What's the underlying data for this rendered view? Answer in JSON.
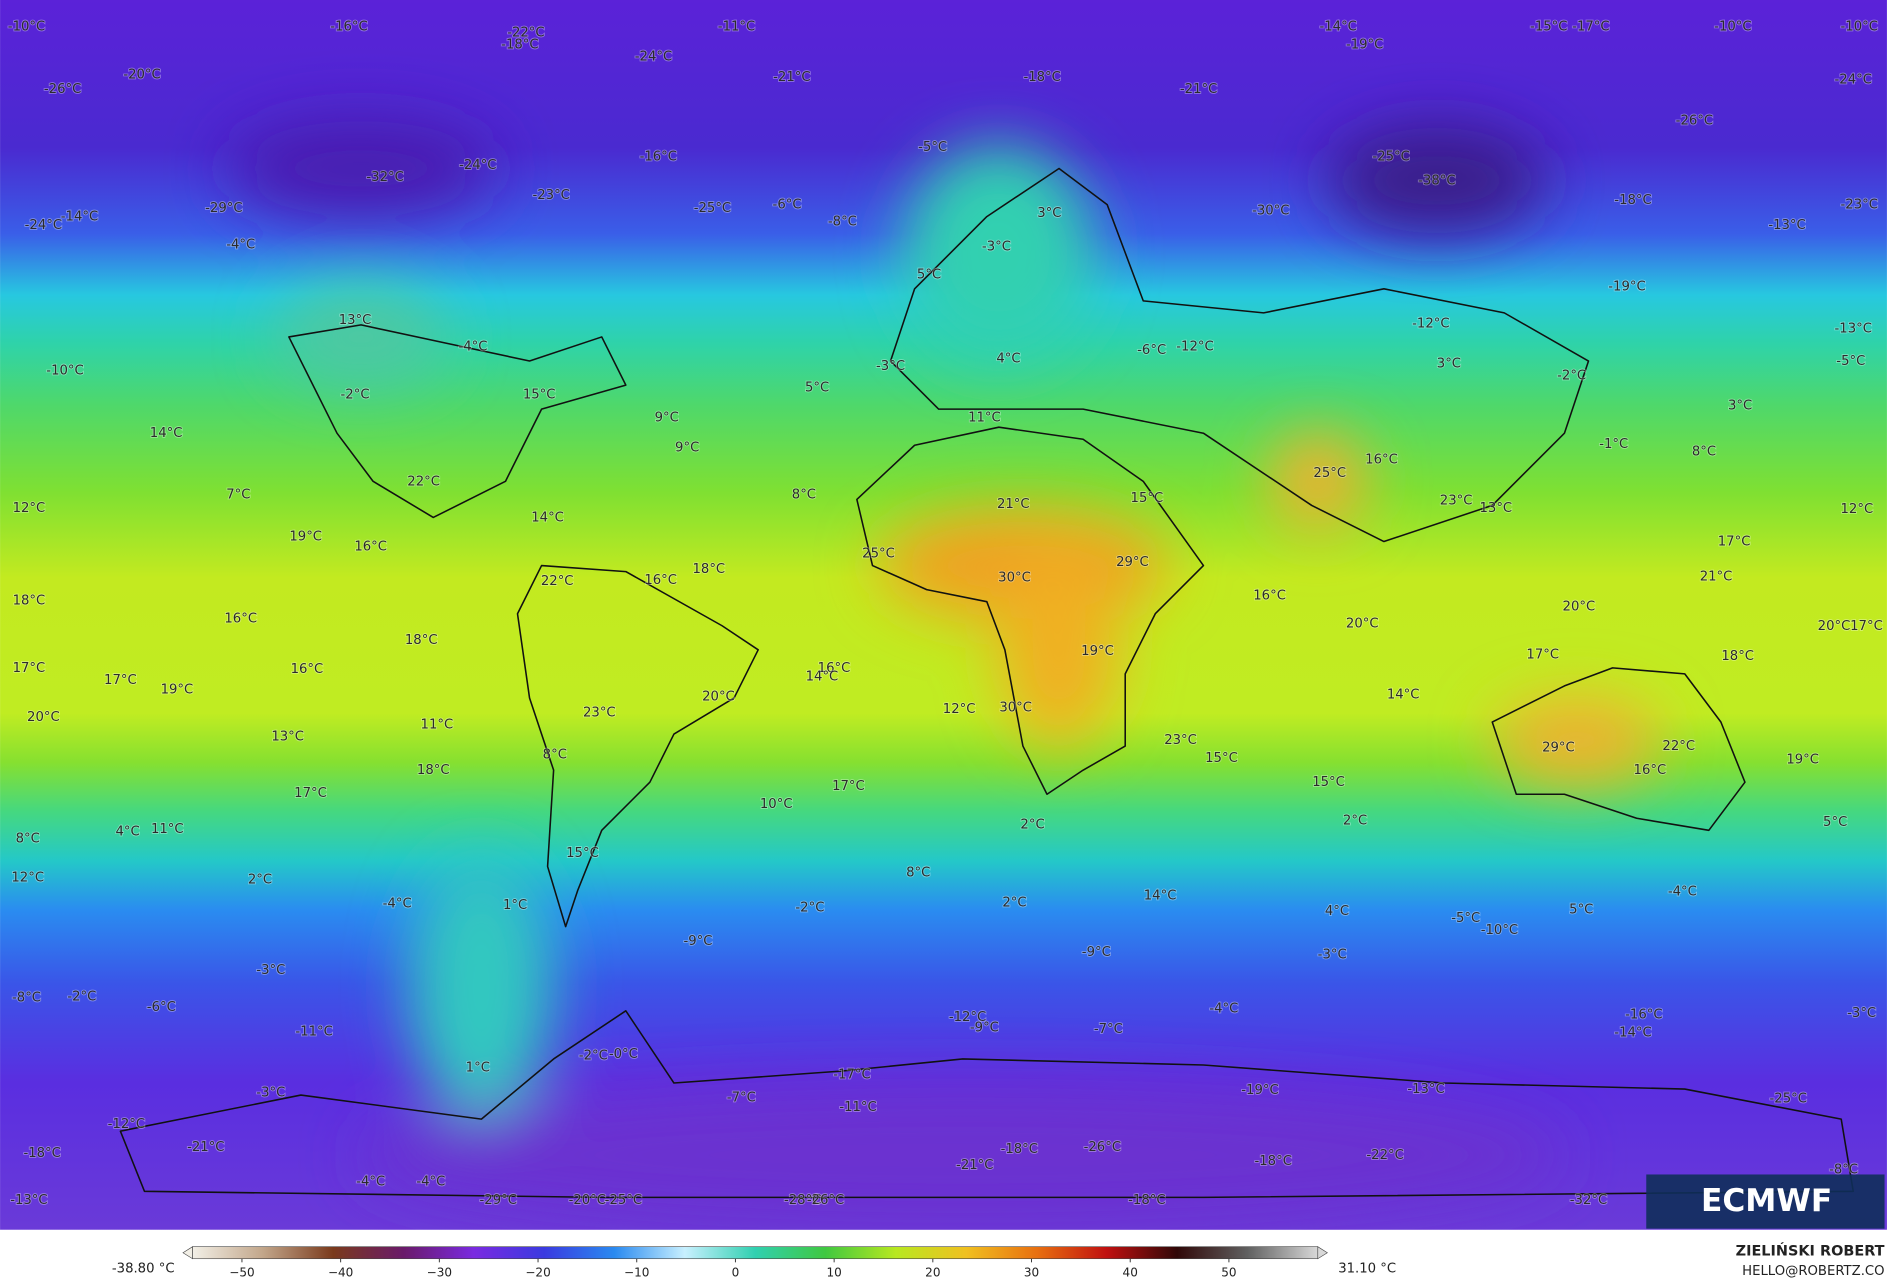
{
  "map": {
    "labels": [
      "-10°C",
      "-16°C",
      "-22°C",
      "-18°C",
      "-11°C",
      "-14°C",
      "-19°C",
      "-15°C",
      "-17°C",
      "-10°C",
      "-10°C",
      "-26°C",
      "-20°C",
      "-24°C",
      "-21°C",
      "-18°C",
      "-21°C",
      "-24°C",
      "-26°C",
      "-5°C",
      "-16°C",
      "-24°C",
      "-32°C",
      "-25°C",
      "-38°C",
      "-23°C",
      "-18°C",
      "-23°C",
      "-24°C",
      "-14°C",
      "-29°C",
      "-25°C",
      "-6°C",
      "-8°C",
      "3°C",
      "-30°C",
      "-13°C",
      "-4°C",
      "-3°C",
      "5°C",
      "-19°C",
      "13°C",
      "-12°C",
      "-13°C",
      "-4°C",
      "4°C",
      "-6°C",
      "-12°C",
      "3°C",
      "-5°C",
      "-10°C",
      "-2°C",
      "15°C",
      "5°C",
      "-3°C",
      "-2°C",
      "3°C",
      "9°C",
      "11°C",
      "14°C",
      "-1°C",
      "9°C",
      "8°C",
      "16°C",
      "22°C",
      "25°C",
      "7°C",
      "8°C",
      "21°C",
      "15°C",
      "23°C",
      "13°C",
      "12°C",
      "12°C",
      "14°C",
      "19°C",
      "16°C",
      "17°C",
      "25°C",
      "29°C",
      "18°C",
      "21°C",
      "30°C",
      "22°C",
      "16°C",
      "16°C",
      "18°C",
      "20°C",
      "16°C",
      "20°C",
      "20°C",
      "17°C",
      "18°C",
      "19°C",
      "17°C",
      "18°C",
      "17°C",
      "16°C",
      "16°C",
      "14°C",
      "17°C",
      "19°C",
      "14°C",
      "20°C",
      "12°C",
      "30°C",
      "23°C",
      "20°C",
      "11°C",
      "13°C",
      "23°C",
      "29°C",
      "22°C",
      "8°C",
      "15°C",
      "19°C",
      "18°C",
      "16°C",
      "15°C",
      "17°C",
      "17°C",
      "10°C",
      "2°C",
      "2°C",
      "5°C",
      "4°C",
      "11°C",
      "8°C",
      "15°C",
      "8°C",
      "12°C",
      "2°C",
      "-4°C",
      "14°C",
      "-4°C",
      "1°C",
      "-2°C",
      "2°C",
      "4°C",
      "5°C",
      "-5°C",
      "-10°C",
      "-9°C",
      "-9°C",
      "-3°C",
      "-3°C",
      "-8°C",
      "-2°C",
      "-6°C",
      "-4°C",
      "-3°C",
      "-12°C",
      "-16°C",
      "-9°C",
      "-7°C",
      "-14°C",
      "-11°C",
      "1°C",
      "-2°C",
      "-0°C",
      "-17°C",
      "-11°C",
      "-19°C",
      "-13°C",
      "-25°C",
      "-3°C",
      "-7°C",
      "-12°C",
      "-21°C",
      "-18°C",
      "-26°C",
      "-18°C",
      "-21°C",
      "-18°C",
      "-22°C",
      "-8°C",
      "-4°C",
      "-4°C",
      "-13°C",
      "-29°C",
      "-20°C",
      "-25°C",
      "-28°C",
      "-26°C",
      "-18°C",
      "-32°C"
    ]
  },
  "logo": "ECMWF",
  "author": {
    "name": "ZIELIŃSKI ROBERT",
    "email": "HELLO@ROBERTZ.CO"
  },
  "colorbar": {
    "min_label": "-38.80 °C",
    "max_label": "31.10 °C",
    "range": [
      -55,
      59
    ],
    "ticks": [
      {
        "value": -50,
        "label": "−50"
      },
      {
        "value": -40,
        "label": "−40"
      },
      {
        "value": -30,
        "label": "−30"
      },
      {
        "value": -20,
        "label": "−20"
      },
      {
        "value": -10,
        "label": "−10"
      },
      0,
      10,
      20,
      30,
      40,
      50
    ],
    "colors": [
      "#f2efe6",
      "#c2a68a",
      "#7a3a1c",
      "#6a1a6a",
      "#7a2ae0",
      "#3a3ae0",
      "#2a8af0",
      "#c8f0ff",
      "#30d0b0",
      "#40c840",
      "#b8e820",
      "#f0c020",
      "#e87010",
      "#c01010",
      "#300808",
      "#606060",
      "#d8d8d8"
    ]
  }
}
